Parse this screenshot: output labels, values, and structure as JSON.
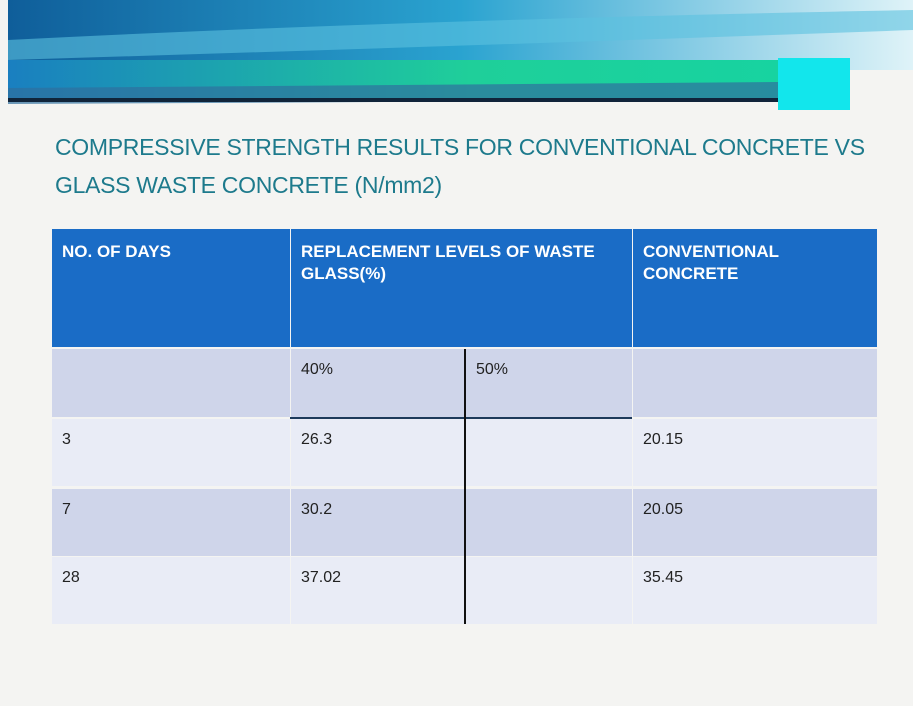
{
  "title": "COMPRESSIVE STRENGTH RESULTS FOR CONVENTIONAL CONCRETE VS GLASS WASTE CONCRETE (N/mm2)",
  "table": {
    "header": [
      "NO. OF DAYS",
      "REPLACEMENT LEVELS OF WASTE GLASS(%)",
      "CONVENTIONAL CONCRETE"
    ],
    "subheader": [
      "40%",
      "50%"
    ],
    "rows": [
      {
        "days": "3",
        "glass_40": "26.3",
        "conventional": "20.15"
      },
      {
        "days": "7",
        "glass_40": "30.2",
        "conventional": "20.05"
      },
      {
        "days": "28",
        "glass_40": "37.02",
        "conventional": "35.45"
      }
    ]
  }
}
